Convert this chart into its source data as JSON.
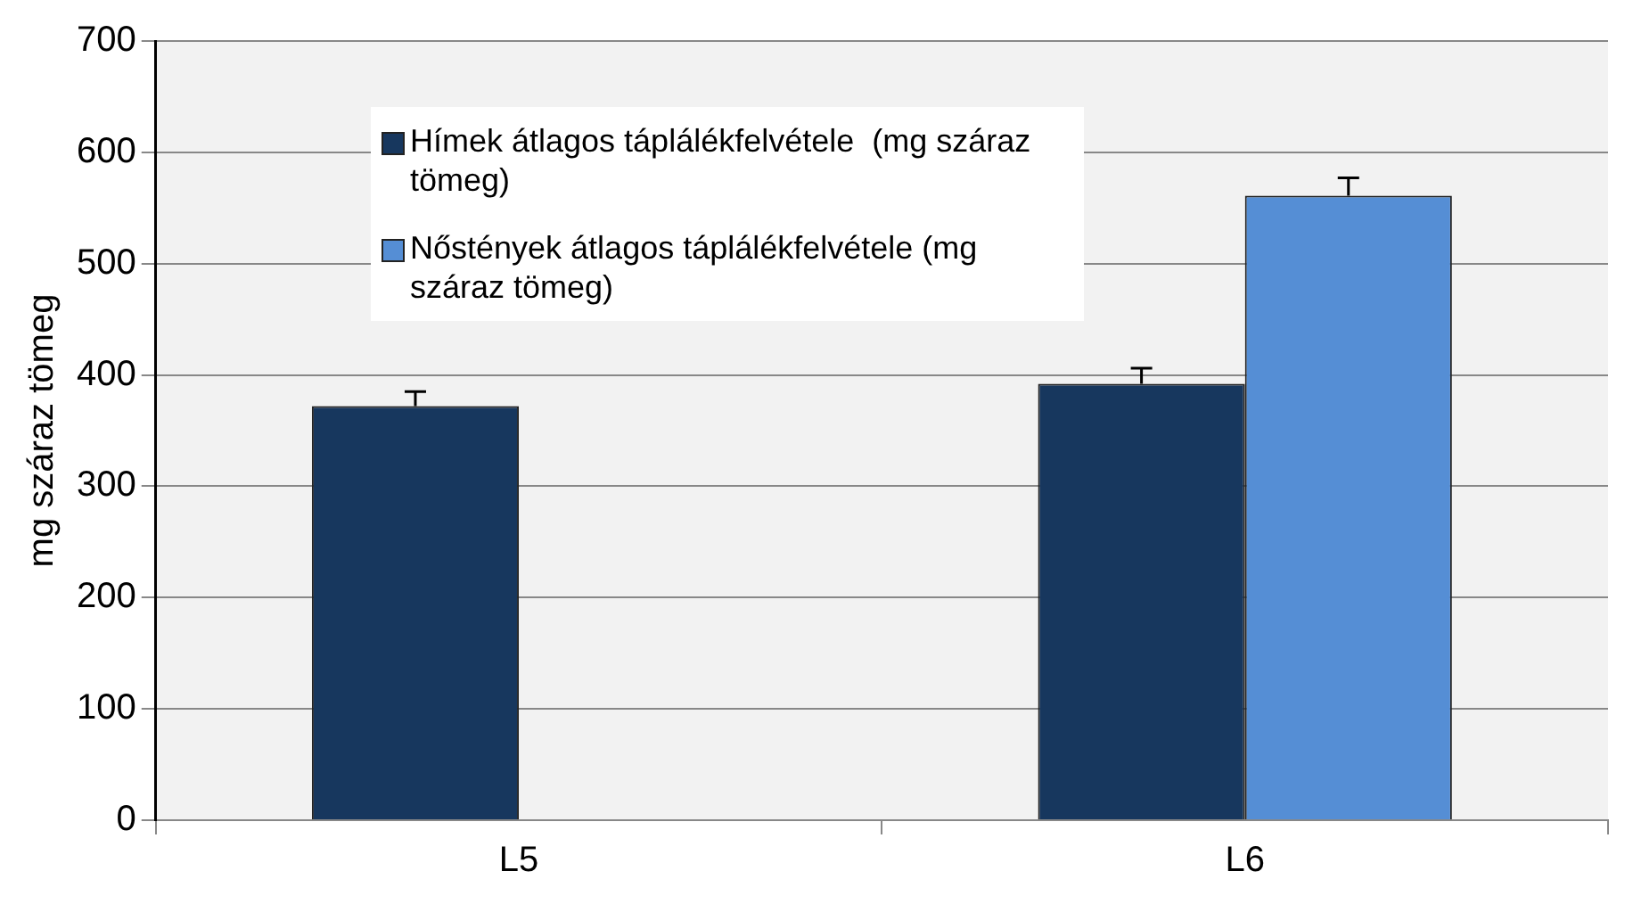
{
  "chart_data": {
    "type": "bar",
    "ylabel": "mg száraz tömeg",
    "categories": [
      "L5",
      "L6"
    ],
    "series": [
      {
        "name": "Hímek átlagos táplálékfelvétele  (mg száraz tömeg)",
        "color": "#17375e",
        "values": [
          372,
          392
        ],
        "errors": [
          13,
          14
        ]
      },
      {
        "name": "Nőstények átlagos táplálékfelvétele (mg száraz tömeg)",
        "color": "#558ed5",
        "values": [
          null,
          561
        ],
        "errors": [
          null,
          16
        ]
      }
    ],
    "ylim": [
      0,
      700
    ],
    "yticks": [
      0,
      100,
      200,
      300,
      400,
      500,
      600,
      700
    ],
    "grid": "y",
    "legend": "top left"
  }
}
